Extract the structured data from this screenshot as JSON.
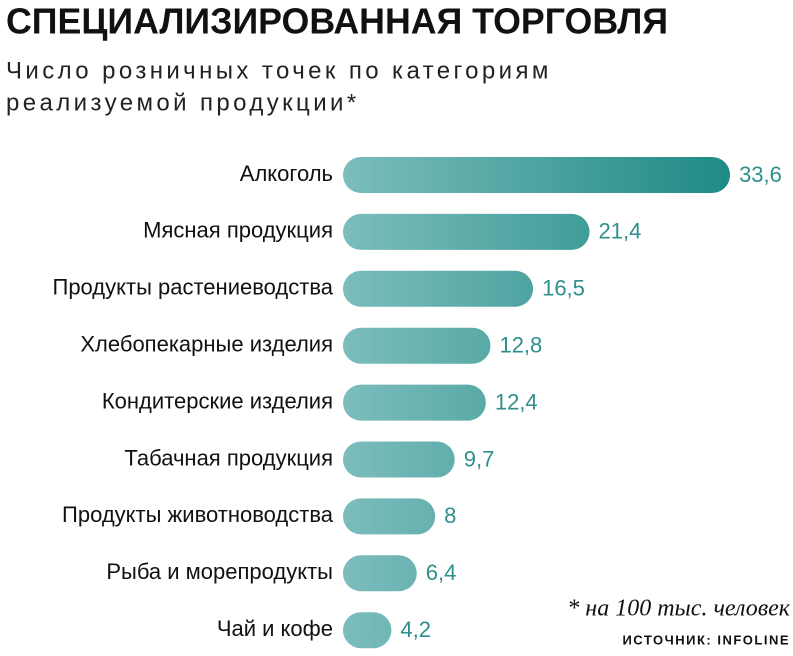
{
  "chart_data": {
    "type": "hbar",
    "title": "СПЕЦИАЛИЗИРОВАННАЯ ТОРГОВЛЯ",
    "subtitle": [
      "Число розничных точек по категориям",
      "реализуемой продукции*"
    ],
    "categories": [
      "Алкоголь",
      "Мясная продукция",
      "Продукты растениеводства",
      "Хлебопекарные изделия",
      "Кондитерские изделия",
      "Табачная продукция",
      "Продукты животноводства",
      "Рыба и морепродукты",
      "Чай и кофе"
    ],
    "values": [
      33.6,
      21.4,
      16.5,
      12.8,
      12.4,
      9.7,
      8,
      6.4,
      4.2
    ],
    "value_labels": [
      "33,6",
      "21,4",
      "16,5",
      "12,8",
      "12,4",
      "9,7",
      "8",
      "6,4",
      "4,2"
    ],
    "color": "#1f8a84",
    "note": "* на 100 тыс. человек",
    "source": "ИСТОЧНИК: INFOLINE"
  }
}
